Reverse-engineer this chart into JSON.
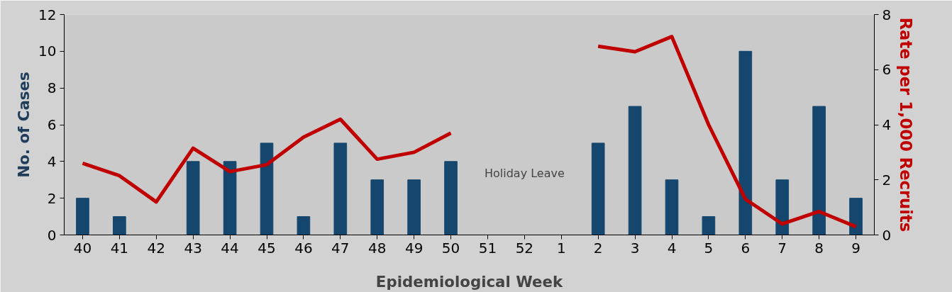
{
  "chart_data": {
    "type": "bar",
    "xlabel": "Epidemiological Week",
    "ylabel": "No. of Cases",
    "y2label": "Rate per 1,000 Recruits",
    "categories": [
      "40",
      "41",
      "42",
      "43",
      "44",
      "45",
      "46",
      "47",
      "48",
      "49",
      "50",
      "51",
      "52",
      "1",
      "2",
      "3",
      "4",
      "5",
      "6",
      "7",
      "8",
      "9"
    ],
    "ylim": [
      0,
      12
    ],
    "yticks": [
      0,
      2,
      4,
      6,
      8,
      10,
      12
    ],
    "y2lim": [
      0,
      8
    ],
    "y2ticks": [
      0,
      2,
      4,
      6,
      8
    ],
    "grid": false,
    "series": [
      {
        "color": "#15476e",
        "values": [
          2,
          1,
          0,
          4,
          4,
          5,
          1,
          5,
          3,
          3,
          4,
          null,
          null,
          null,
          5,
          7,
          3,
          1,
          10,
          3,
          7,
          2
        ]
      },
      {
        "type": "line",
        "axis": "y2",
        "color": "#c00000",
        "values": [
          2.6,
          2.15,
          1.2,
          3.15,
          2.3,
          2.55,
          3.55,
          4.2,
          2.75,
          3.0,
          3.7,
          null,
          null,
          null,
          6.85,
          6.65,
          7.2,
          4.0,
          1.3,
          0.4,
          0.85,
          0.3
        ]
      }
    ],
    "annotations": [
      "Holiday Leave"
    ]
  }
}
